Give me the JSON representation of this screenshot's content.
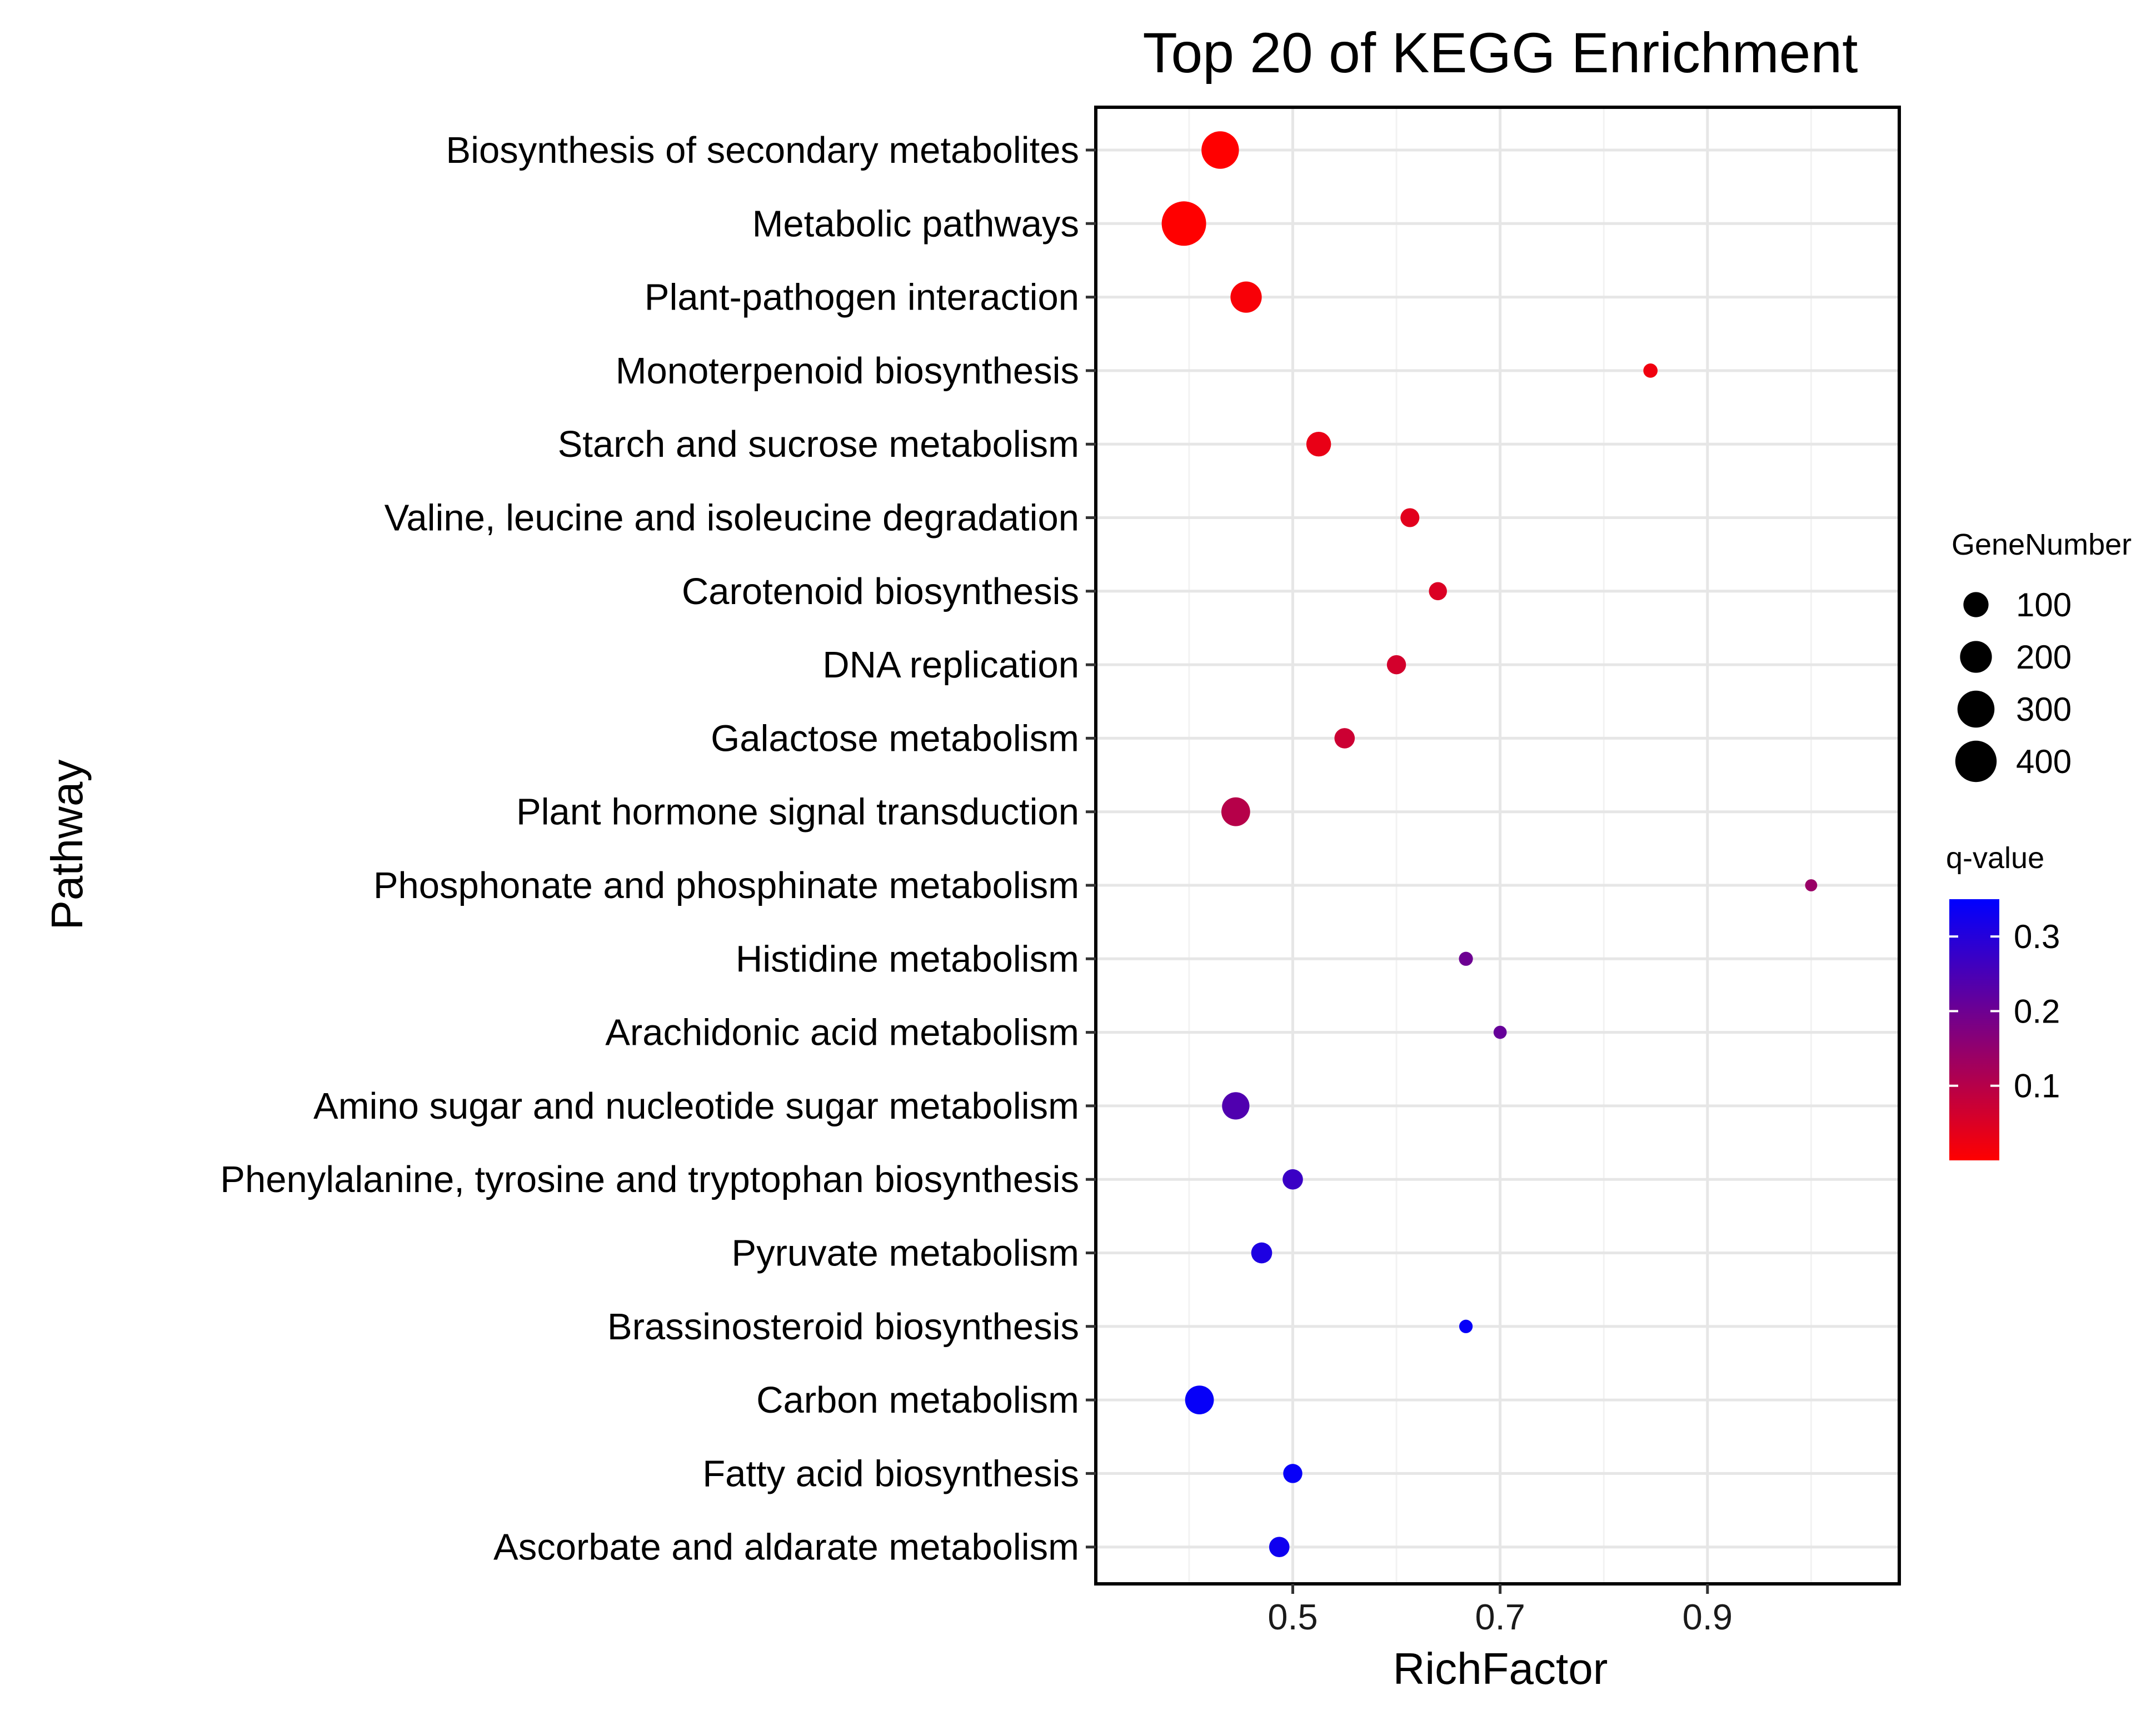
{
  "chart_data": {
    "type": "scatter",
    "title": "Top 20 of KEGG Enrichment",
    "xlabel": "RichFactor",
    "ylabel": "Pathway",
    "xlim": [
      0.31,
      1.085
    ],
    "xticks": [
      0.5,
      0.7,
      0.9
    ],
    "xtick_labels": [
      "0.5",
      "0.7",
      "0.9"
    ],
    "grid": true,
    "points": [
      {
        "pathway": "Biosynthesis of secondary metabolites",
        "rich_factor": 0.43,
        "gene_number": 310,
        "q_value": 0.0
      },
      {
        "pathway": "Metabolic pathways",
        "rich_factor": 0.395,
        "gene_number": 480,
        "q_value": 0.0
      },
      {
        "pathway": "Plant-pathogen interaction",
        "rich_factor": 0.455,
        "gene_number": 190,
        "q_value": 0.01
      },
      {
        "pathway": "Monoterpenoid biosynthesis",
        "rich_factor": 0.845,
        "gene_number": 11,
        "q_value": 0.02
      },
      {
        "pathway": "Starch and sucrose metabolism",
        "rich_factor": 0.525,
        "gene_number": 95,
        "q_value": 0.03
      },
      {
        "pathway": "Valine, leucine and isoleucine degradation",
        "rich_factor": 0.613,
        "gene_number": 38,
        "q_value": 0.04
      },
      {
        "pathway": "Carotenoid biosynthesis",
        "rich_factor": 0.64,
        "gene_number": 32,
        "q_value": 0.05
      },
      {
        "pathway": "DNA replication",
        "rich_factor": 0.6,
        "gene_number": 40,
        "q_value": 0.06
      },
      {
        "pathway": "Galactose metabolism",
        "rich_factor": 0.55,
        "gene_number": 50,
        "q_value": 0.07
      },
      {
        "pathway": "Plant hormone signal transduction",
        "rich_factor": 0.445,
        "gene_number": 150,
        "q_value": 0.1
      },
      {
        "pathway": "Phosphonate and phosphinate metabolism",
        "rich_factor": 1.0,
        "gene_number": 4,
        "q_value": 0.14
      },
      {
        "pathway": "Histidine metabolism",
        "rich_factor": 0.667,
        "gene_number": 10,
        "q_value": 0.2
      },
      {
        "pathway": "Arachidonic acid metabolism",
        "rich_factor": 0.7,
        "gene_number": 7,
        "q_value": 0.21
      },
      {
        "pathway": "Amino sugar and nucleotide sugar metabolism",
        "rich_factor": 0.445,
        "gene_number": 130,
        "q_value": 0.24
      },
      {
        "pathway": "Phenylalanine, tyrosine and tryptophan biosynthesis",
        "rich_factor": 0.5,
        "gene_number": 50,
        "q_value": 0.27
      },
      {
        "pathway": "Pyruvate metabolism",
        "rich_factor": 0.47,
        "gene_number": 55,
        "q_value": 0.31
      },
      {
        "pathway": "Brassinosteroid biosynthesis",
        "rich_factor": 0.667,
        "gene_number": 8,
        "q_value": 0.34
      },
      {
        "pathway": "Carbon metabolism",
        "rich_factor": 0.41,
        "gene_number": 150,
        "q_value": 0.34
      },
      {
        "pathway": "Fatty acid biosynthesis",
        "rich_factor": 0.5,
        "gene_number": 40,
        "q_value": 0.34
      },
      {
        "pathway": "Ascorbate and aldarate metabolism",
        "rich_factor": 0.487,
        "gene_number": 50,
        "q_value": 0.33
      }
    ],
    "size_legend": {
      "title": "GeneNumber",
      "values": [
        100,
        200,
        300,
        400
      ],
      "labels": [
        "100",
        "200",
        "300",
        "400"
      ]
    },
    "color_legend": {
      "title": "q-value",
      "min": 0.0,
      "max": 0.35,
      "ticks": [
        0.1,
        0.2,
        0.3
      ],
      "tick_labels": [
        "0.1",
        "0.2",
        "0.3"
      ],
      "low_color": "#ff0000",
      "high_color": "#0000ff"
    }
  }
}
